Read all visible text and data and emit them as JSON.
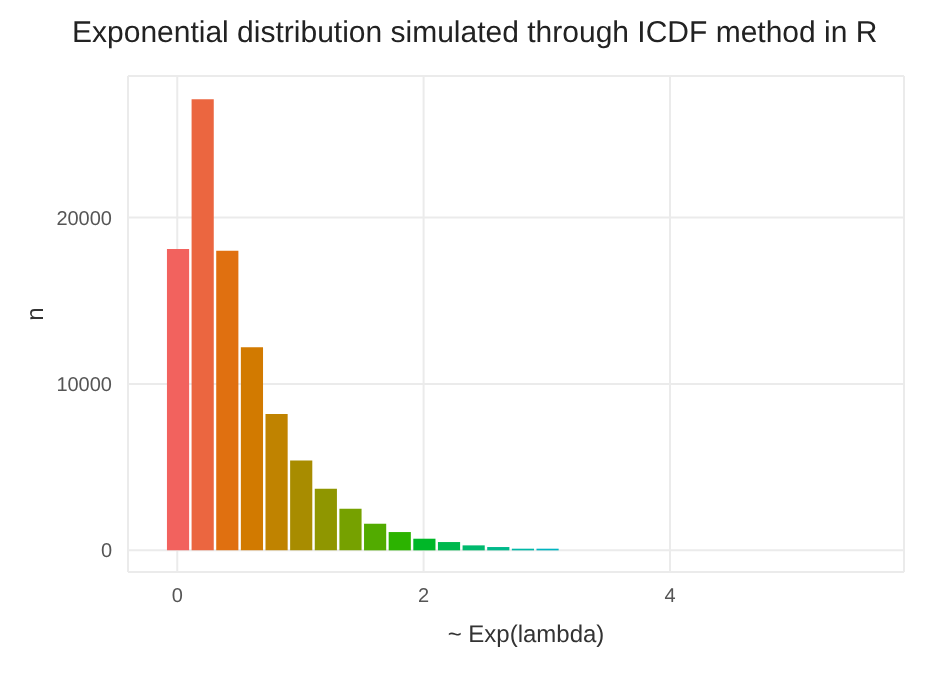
{
  "chart_data": {
    "type": "histogram",
    "title": "Exponential distribution simulated through ICDF method in R",
    "xlabel": "~ Exp(lambda)",
    "ylabel": "n",
    "bins": [
      -0.1,
      0.1,
      0.3,
      0.5,
      0.7,
      0.9,
      1.1,
      1.3,
      1.5,
      1.7,
      1.9,
      2.1,
      2.3,
      2.5,
      2.7,
      2.9,
      3.1
    ],
    "values": [
      18100,
      27100,
      18000,
      12200,
      8200,
      5400,
      3700,
      2500,
      1600,
      1100,
      700,
      500,
      300,
      200,
      100,
      100
    ],
    "colors": [
      "#f2625e",
      "#eb6640",
      "#e07010",
      "#d27a00",
      "#c08300",
      "#a88c00",
      "#8f9600",
      "#76a100",
      "#52ab00",
      "#2cb300",
      "#00b728",
      "#00b84e",
      "#00b96d",
      "#00b98a",
      "#00b8a6",
      "#00b4c0"
    ],
    "xlim": [
      -0.4,
      5.9
    ],
    "xticks": [
      0,
      2,
      4
    ],
    "ylim": [
      -1300,
      28500
    ],
    "yticks": [
      0,
      10000,
      20000
    ],
    "grid": true
  }
}
